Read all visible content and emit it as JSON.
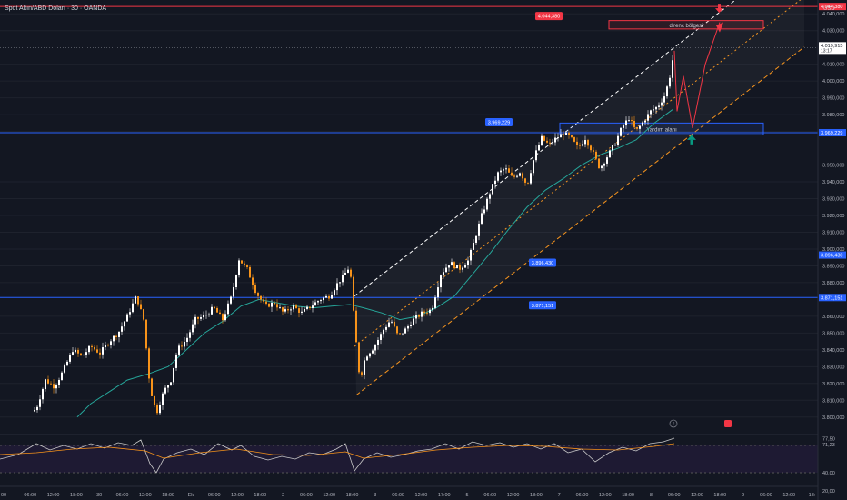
{
  "header": {
    "title": "Spot Altın/ABD Doları · 30 · OANDA",
    "currency": "USD"
  },
  "colors": {
    "background": "#131722",
    "candle": "#ffffff",
    "candle_down": "#f7931a",
    "ma": "#26a69a",
    "level": "#2962ff",
    "resistance": "#f23645",
    "channel_white": "#ffffff",
    "channel_orange": "#f7931a",
    "rsi": "#c9c9c9",
    "rsi_ma": "#f7931a",
    "support_arrow": "#089981"
  },
  "chart_data": {
    "type": "candlestick",
    "ylim": [
      3795,
      4045
    ],
    "y_ticks": [
      {
        "v": 4040,
        "label": "4.040,000"
      },
      {
        "v": 4030,
        "label": "4.030,000"
      },
      {
        "v": 4010,
        "label": "4.010,000"
      },
      {
        "v": 4000,
        "label": "4.000,000"
      },
      {
        "v": 3990,
        "label": "3.990,000"
      },
      {
        "v": 3980,
        "label": "3.980,000"
      },
      {
        "v": 3970,
        "label": "3.970,000"
      },
      {
        "v": 3950,
        "label": "3.950,000"
      },
      {
        "v": 3940,
        "label": "3.940,000"
      },
      {
        "v": 3930,
        "label": "3.930,000"
      },
      {
        "v": 3920,
        "label": "3.920,000"
      },
      {
        "v": 3910,
        "label": "3.910,000"
      },
      {
        "v": 3900,
        "label": "3.900,000"
      },
      {
        "v": 3890,
        "label": "3.890,000"
      },
      {
        "v": 3880,
        "label": "3.880,000"
      },
      {
        "v": 3860,
        "label": "3.860,000"
      },
      {
        "v": 3850,
        "label": "3.850,000"
      },
      {
        "v": 3840,
        "label": "3.840,000"
      },
      {
        "v": 3830,
        "label": "3.830,000"
      },
      {
        "v": 3820,
        "label": "3.820,000"
      },
      {
        "v": 3810,
        "label": "3.810,000"
      },
      {
        "v": 3800,
        "label": "3.800,000"
      }
    ],
    "x_labels": [
      "00",
      "06:00",
      "12:00",
      "18:00",
      "30",
      "06:00",
      "12:00",
      "18:00",
      "Eki",
      "06:00",
      "12:00",
      "18:00",
      "2",
      "06:00",
      "12:00",
      "18:00",
      "3",
      "06:00",
      "12:00",
      "17:00",
      "5",
      "06:00",
      "12:00",
      "18:00",
      "7",
      "06:00",
      "12:00",
      "18:00",
      "8",
      "06:00",
      "12:00",
      "18:00",
      "9",
      "06:00",
      "12:00",
      "18:"
    ],
    "price_path": [
      [
        0,
        3800
      ],
      [
        25,
        3799
      ],
      [
        40,
        3805
      ],
      [
        50,
        3822
      ],
      [
        60,
        3818
      ],
      [
        70,
        3828
      ],
      [
        80,
        3840
      ],
      [
        90,
        3836
      ],
      [
        100,
        3842
      ],
      [
        110,
        3838
      ],
      [
        120,
        3845
      ],
      [
        130,
        3850
      ],
      [
        140,
        3860
      ],
      [
        150,
        3872
      ],
      [
        158,
        3858
      ],
      [
        165,
        3818
      ],
      [
        172,
        3802
      ],
      [
        180,
        3815
      ],
      [
        188,
        3822
      ],
      [
        195,
        3840
      ],
      [
        205,
        3846
      ],
      [
        215,
        3858
      ],
      [
        225,
        3860
      ],
      [
        235,
        3865
      ],
      [
        245,
        3858
      ],
      [
        255,
        3872
      ],
      [
        263,
        3894
      ],
      [
        272,
        3888
      ],
      [
        282,
        3874
      ],
      [
        292,
        3866
      ],
      [
        302,
        3868
      ],
      [
        312,
        3862
      ],
      [
        322,
        3866
      ],
      [
        332,
        3862
      ],
      [
        342,
        3866
      ],
      [
        352,
        3870
      ],
      [
        362,
        3872
      ],
      [
        372,
        3880
      ],
      [
        378,
        3884
      ],
      [
        385,
        3890
      ],
      [
        390,
        3855
      ],
      [
        396,
        3822
      ],
      [
        402,
        3836
      ],
      [
        412,
        3842
      ],
      [
        422,
        3852
      ],
      [
        430,
        3858
      ],
      [
        438,
        3848
      ],
      [
        446,
        3852
      ],
      [
        455,
        3858
      ],
      [
        465,
        3862
      ],
      [
        475,
        3864
      ],
      [
        485,
        3885
      ],
      [
        495,
        3892
      ],
      [
        505,
        3888
      ],
      [
        515,
        3893
      ],
      [
        522,
        3905
      ],
      [
        530,
        3920
      ],
      [
        540,
        3935
      ],
      [
        548,
        3945
      ],
      [
        556,
        3948
      ],
      [
        564,
        3942
      ],
      [
        572,
        3946
      ],
      [
        580,
        3938
      ],
      [
        588,
        3955
      ],
      [
        596,
        3966
      ],
      [
        604,
        3962
      ],
      [
        612,
        3966
      ],
      [
        620,
        3969
      ],
      [
        628,
        3966
      ],
      [
        636,
        3960
      ],
      [
        644,
        3966
      ],
      [
        652,
        3958
      ],
      [
        660,
        3948
      ],
      [
        668,
        3955
      ],
      [
        676,
        3962
      ],
      [
        684,
        3972
      ],
      [
        692,
        3978
      ],
      [
        700,
        3970
      ],
      [
        708,
        3976
      ],
      [
        716,
        3982
      ],
      [
        724,
        3985
      ],
      [
        732,
        3992
      ],
      [
        738,
        4005
      ],
      [
        742,
        4020
      ]
    ],
    "ma_path": [
      [
        85,
        3800
      ],
      [
        100,
        3808
      ],
      [
        120,
        3815
      ],
      [
        140,
        3822
      ],
      [
        165,
        3826
      ],
      [
        185,
        3830
      ],
      [
        205,
        3840
      ],
      [
        225,
        3850
      ],
      [
        245,
        3857
      ],
      [
        265,
        3866
      ],
      [
        285,
        3870
      ],
      [
        305,
        3868
      ],
      [
        325,
        3866
      ],
      [
        345,
        3865
      ],
      [
        365,
        3866
      ],
      [
        385,
        3867
      ],
      [
        400,
        3865
      ],
      [
        420,
        3862
      ],
      [
        440,
        3858
      ],
      [
        460,
        3860
      ],
      [
        480,
        3865
      ],
      [
        500,
        3872
      ],
      [
        520,
        3885
      ],
      [
        540,
        3898
      ],
      [
        560,
        3912
      ],
      [
        580,
        3925
      ],
      [
        600,
        3935
      ],
      [
        620,
        3942
      ],
      [
        640,
        3950
      ],
      [
        660,
        3956
      ],
      [
        680,
        3960
      ],
      [
        700,
        3965
      ],
      [
        720,
        3975
      ],
      [
        740,
        3983
      ]
    ],
    "levels": [
      {
        "v": 4044.38,
        "label": "4.044,380",
        "color": "#f23645",
        "x_label": 603
      },
      {
        "v": 3969.229,
        "label": "3.969,229",
        "color": "#2962ff",
        "x_label": 548
      },
      {
        "v": 3896.43,
        "label": "3.896,430",
        "color": "#2962ff",
        "x_label": 596
      },
      {
        "v": 3871.151,
        "label": "3.871,151",
        "color": "#2962ff",
        "x_label": 596
      }
    ],
    "last_price": {
      "v": 4019.915,
      "label": "4.019,915",
      "countdown": "13:17"
    },
    "resistance_zone": {
      "x1": 670,
      "x2": 840,
      "v_top": 4036,
      "v_bottom": 4031,
      "label": "direnç bölgesi"
    },
    "support_zone": {
      "x1": 616,
      "x2": 840,
      "v_top": 3975,
      "v_bottom": 3968,
      "label": "Yardım alanı"
    },
    "channel": {
      "upper": [
        [
          390,
          3872
        ],
        [
          885,
          4045
        ]
      ],
      "mid": [
        [
          390,
          3842
        ],
        [
          885,
          4045
        ]
      ],
      "lower": [
        [
          392,
          3813
        ],
        [
          885,
          4045
        ]
      ]
    },
    "rsi": {
      "ylim": [
        30,
        80
      ],
      "ticks": [
        {
          "v": 77.5,
          "label": "77,50"
        },
        {
          "v": 71.2,
          "label": "71,23"
        },
        {
          "v": 40,
          "label": "40,00"
        },
        {
          "v": 20,
          "label": "20,00"
        }
      ],
      "band": [
        70,
        40
      ],
      "path": [
        [
          0,
          55
        ],
        [
          20,
          60
        ],
        [
          40,
          72
        ],
        [
          55,
          65
        ],
        [
          70,
          70
        ],
        [
          85,
          66
        ],
        [
          100,
          72
        ],
        [
          115,
          67
        ],
        [
          130,
          73
        ],
        [
          145,
          70
        ],
        [
          155,
          76
        ],
        [
          165,
          50
        ],
        [
          172,
          40
        ],
        [
          180,
          55
        ],
        [
          195,
          62
        ],
        [
          210,
          66
        ],
        [
          225,
          60
        ],
        [
          240,
          72
        ],
        [
          255,
          65
        ],
        [
          265,
          70
        ],
        [
          280,
          58
        ],
        [
          295,
          54
        ],
        [
          310,
          58
        ],
        [
          325,
          55
        ],
        [
          340,
          62
        ],
        [
          355,
          60
        ],
        [
          370,
          66
        ],
        [
          380,
          72
        ],
        [
          390,
          42
        ],
        [
          400,
          55
        ],
        [
          415,
          62
        ],
        [
          430,
          57
        ],
        [
          445,
          60
        ],
        [
          460,
          64
        ],
        [
          475,
          66
        ],
        [
          490,
          72
        ],
        [
          505,
          66
        ],
        [
          520,
          74
        ],
        [
          535,
          70
        ],
        [
          550,
          73
        ],
        [
          565,
          68
        ],
        [
          580,
          72
        ],
        [
          595,
          66
        ],
        [
          610,
          72
        ],
        [
          625,
          62
        ],
        [
          640,
          66
        ],
        [
          655,
          52
        ],
        [
          670,
          62
        ],
        [
          685,
          68
        ],
        [
          700,
          64
        ],
        [
          715,
          72
        ],
        [
          730,
          74
        ],
        [
          742,
          78
        ]
      ],
      "ma_path": [
        [
          0,
          60
        ],
        [
          40,
          62
        ],
        [
          80,
          66
        ],
        [
          120,
          68
        ],
        [
          160,
          64
        ],
        [
          180,
          56
        ],
        [
          220,
          62
        ],
        [
          260,
          66
        ],
        [
          300,
          60
        ],
        [
          340,
          59
        ],
        [
          380,
          63
        ],
        [
          400,
          56
        ],
        [
          440,
          60
        ],
        [
          480,
          65
        ],
        [
          520,
          68
        ],
        [
          560,
          70
        ],
        [
          600,
          69
        ],
        [
          640,
          66
        ],
        [
          680,
          65
        ],
        [
          720,
          69
        ],
        [
          742,
          72
        ]
      ]
    }
  },
  "markers": {
    "circle_icon": "circle-number-icon",
    "calendar_icon": "calendar-flag-icon",
    "circle_label": "2"
  }
}
